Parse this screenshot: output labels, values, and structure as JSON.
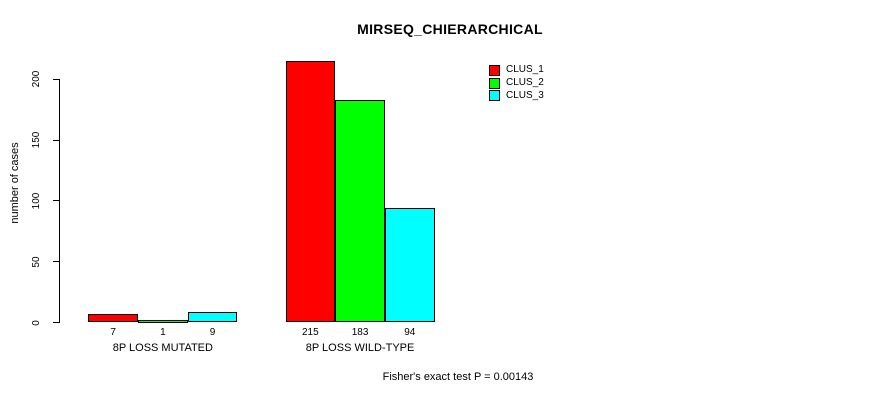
{
  "title": "MIRSEQ_CHIERARCHICAL",
  "caption": "Fisher's exact test P = 0.00143",
  "chart_data": {
    "type": "bar",
    "title": "MIRSEQ_CHIERARCHICAL",
    "xlabel": "",
    "ylabel": "number of cases",
    "categories": [
      "8P LOSS MUTATED",
      "8P LOSS WILD-TYPE"
    ],
    "series": [
      {
        "name": "CLUS_1",
        "color": "#ff0000",
        "values": [
          7,
          215
        ]
      },
      {
        "name": "CLUS_2",
        "color": "#00ff00",
        "values": [
          1,
          183
        ]
      },
      {
        "name": "CLUS_3",
        "color": "#00ffff",
        "values": [
          9,
          94
        ]
      }
    ],
    "bar_value_labels": [
      [
        "7",
        "1",
        "9"
      ],
      [
        "215",
        "183",
        "94"
      ]
    ],
    "yticks": [
      0,
      50,
      100,
      150,
      200
    ],
    "ylim": [
      0,
      200
    ],
    "grid": false,
    "legend_position": "top-right",
    "annotation": "Fisher's exact test P = 0.00143"
  },
  "colors": {
    "background": "#ffffff",
    "axis": "#000000",
    "text": "#000000",
    "bar_border": "#000000"
  }
}
